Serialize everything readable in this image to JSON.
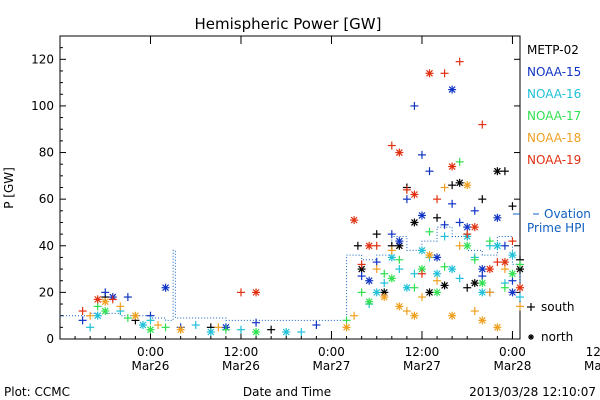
{
  "chart_data": {
    "type": "scatter",
    "title": "Hemispheric Power [GW]",
    "ylabel": "P [GW]",
    "xlabel": "Date and Time",
    "ylim": [
      0,
      130
    ],
    "y_ticks": [
      0,
      20,
      40,
      60,
      80,
      100,
      120
    ],
    "xlim_hours": [
      -12,
      49
    ],
    "x_ticks": [
      {
        "hour": 0,
        "time": "0:00",
        "date": "Mar26"
      },
      {
        "hour": 12,
        "time": "12:00",
        "date": "Mar26"
      },
      {
        "hour": 24,
        "time": "0:00",
        "date": "Mar27"
      },
      {
        "hour": 36,
        "time": "12:00",
        "date": "Mar27"
      },
      {
        "hour": 48,
        "time": "0:00",
        "date": "Mar28"
      },
      {
        "hour": 60,
        "time": "12:00",
        "date": "Mar28"
      }
    ],
    "legend_position": "right",
    "series": [
      {
        "name": "METP-02",
        "color": "#000000",
        "south": [
          [
            27.5,
            40
          ],
          [
            30,
            45
          ],
          [
            32,
            40
          ],
          [
            34,
            65
          ],
          [
            38,
            52
          ],
          [
            40,
            66
          ],
          [
            42,
            22
          ],
          [
            44,
            60
          ],
          [
            47,
            72
          ],
          [
            48,
            57
          ],
          [
            49,
            34
          ],
          [
            50,
            28
          ],
          [
            53,
            15
          ],
          [
            56,
            10
          ],
          [
            58,
            40
          ],
          [
            59,
            53
          ],
          [
            60,
            20
          ],
          [
            -6,
            18
          ],
          [
            -2,
            8
          ],
          [
            8,
            5
          ],
          [
            16,
            4
          ]
        ],
        "north": [
          [
            28,
            30
          ],
          [
            31,
            20
          ],
          [
            33,
            40
          ],
          [
            35,
            50
          ],
          [
            37,
            20
          ],
          [
            39,
            23
          ],
          [
            41,
            67
          ],
          [
            43,
            24
          ],
          [
            46,
            72
          ],
          [
            49,
            30
          ],
          [
            52,
            10
          ],
          [
            55,
            8
          ],
          [
            58,
            15
          ],
          [
            60,
            20
          ]
        ]
      },
      {
        "name": "NOAA-15",
        "color": "#1034c4",
        "south": [
          [
            -9,
            8
          ],
          [
            -6,
            20
          ],
          [
            -3,
            18
          ],
          [
            0,
            10
          ],
          [
            4,
            5
          ],
          [
            14,
            7
          ],
          [
            22,
            6
          ],
          [
            28,
            27
          ],
          [
            30,
            33
          ],
          [
            32,
            45
          ],
          [
            34,
            60
          ],
          [
            35,
            100
          ],
          [
            36,
            79
          ],
          [
            37,
            72
          ],
          [
            39,
            49
          ],
          [
            40,
            58
          ],
          [
            41,
            50
          ],
          [
            43,
            55
          ],
          [
            44,
            27
          ],
          [
            45,
            20
          ],
          [
            47,
            40
          ],
          [
            48,
            25
          ],
          [
            50,
            72
          ],
          [
            51,
            50
          ],
          [
            53,
            30
          ],
          [
            55,
            15
          ],
          [
            57,
            15
          ]
        ],
        "north": [
          [
            -5,
            18
          ],
          [
            2,
            22
          ],
          [
            10,
            5
          ],
          [
            29,
            25
          ],
          [
            33,
            42
          ],
          [
            36,
            53
          ],
          [
            38,
            35
          ],
          [
            40,
            107
          ],
          [
            42,
            48
          ],
          [
            44,
            30
          ],
          [
            46,
            52
          ],
          [
            48,
            20
          ],
          [
            52,
            18
          ],
          [
            56,
            8
          ]
        ]
      },
      {
        "name": "NOAA-16",
        "color": "#20c0d8",
        "south": [
          [
            -8,
            5
          ],
          [
            -4,
            12
          ],
          [
            0,
            8
          ],
          [
            6,
            6
          ],
          [
            12,
            4
          ],
          [
            20,
            3
          ],
          [
            29,
            15
          ],
          [
            31,
            24
          ],
          [
            33,
            30
          ],
          [
            35,
            28
          ],
          [
            37,
            35
          ],
          [
            39,
            44
          ],
          [
            41,
            26
          ],
          [
            43,
            35
          ],
          [
            45,
            40
          ],
          [
            47,
            24
          ],
          [
            49,
            18
          ],
          [
            51,
            44
          ],
          [
            53,
            28
          ],
          [
            55,
            18
          ],
          [
            57,
            36
          ],
          [
            59,
            25
          ]
        ],
        "north": [
          [
            -7,
            10
          ],
          [
            -1,
            6
          ],
          [
            8,
            3
          ],
          [
            18,
            3
          ],
          [
            30,
            20
          ],
          [
            32,
            35
          ],
          [
            34,
            22
          ],
          [
            36,
            38
          ],
          [
            38,
            28
          ],
          [
            40,
            30
          ],
          [
            42,
            44
          ],
          [
            44,
            20
          ],
          [
            46,
            40
          ],
          [
            48,
            36
          ],
          [
            50,
            14
          ],
          [
            54,
            14
          ],
          [
            58,
            18
          ]
        ]
      },
      {
        "name": "NOAA-17",
        "color": "#30e050",
        "south": [
          [
            -7,
            14
          ],
          [
            -3,
            9
          ],
          [
            2,
            5
          ],
          [
            10,
            4
          ],
          [
            26,
            8
          ],
          [
            28,
            20
          ],
          [
            31,
            28
          ],
          [
            33,
            34
          ],
          [
            35,
            22
          ],
          [
            37,
            46
          ],
          [
            39,
            31
          ],
          [
            41,
            76
          ],
          [
            43,
            34
          ],
          [
            45,
            42
          ],
          [
            47,
            22
          ],
          [
            49,
            32
          ],
          [
            51,
            12
          ],
          [
            54,
            20
          ],
          [
            57,
            22
          ],
          [
            59,
            34
          ]
        ],
        "north": [
          [
            -6,
            12
          ],
          [
            0,
            4
          ],
          [
            14,
            3
          ],
          [
            29,
            16
          ],
          [
            32,
            26
          ],
          [
            36,
            30
          ],
          [
            38,
            20
          ],
          [
            42,
            40
          ],
          [
            44,
            24
          ],
          [
            48,
            28
          ],
          [
            52,
            16
          ],
          [
            56,
            10
          ]
        ]
      },
      {
        "name": "NOAA-18",
        "color": "#f0a020",
        "south": [
          [
            -8,
            10
          ],
          [
            -4,
            14
          ],
          [
            1,
            6
          ],
          [
            9,
            5
          ],
          [
            27,
            10
          ],
          [
            30,
            30
          ],
          [
            32,
            38
          ],
          [
            34,
            12
          ],
          [
            36,
            18
          ],
          [
            38,
            25
          ],
          [
            39,
            65
          ],
          [
            41,
            40
          ],
          [
            43,
            12
          ],
          [
            45,
            20
          ],
          [
            47,
            30
          ],
          [
            49,
            14
          ],
          [
            52,
            20
          ],
          [
            55,
            15
          ],
          [
            58,
            14
          ]
        ],
        "north": [
          [
            -6,
            16
          ],
          [
            -2,
            10
          ],
          [
            4,
            4
          ],
          [
            26,
            5
          ],
          [
            31,
            18
          ],
          [
            33,
            14
          ],
          [
            35,
            10
          ],
          [
            37,
            36
          ],
          [
            40,
            10
          ],
          [
            42,
            66
          ],
          [
            44,
            8
          ],
          [
            46,
            5
          ],
          [
            50,
            25
          ],
          [
            53,
            10
          ],
          [
            57,
            6
          ]
        ]
      },
      {
        "name": "NOAA-19",
        "color": "#e03010",
        "south": [
          [
            -9,
            12
          ],
          [
            -5,
            17
          ],
          [
            12,
            20
          ],
          [
            28,
            32
          ],
          [
            30,
            40
          ],
          [
            32,
            83
          ],
          [
            34,
            64
          ],
          [
            36,
            28
          ],
          [
            38,
            60
          ],
          [
            39,
            114
          ],
          [
            41,
            119
          ],
          [
            42,
            45
          ],
          [
            44,
            92
          ],
          [
            46,
            33
          ],
          [
            48,
            42
          ],
          [
            50,
            25
          ],
          [
            52,
            30
          ],
          [
            54,
            15
          ]
        ],
        "north": [
          [
            -7,
            17
          ],
          [
            14,
            20
          ],
          [
            27,
            51
          ],
          [
            29,
            40
          ],
          [
            33,
            80
          ],
          [
            35,
            62
          ],
          [
            37,
            114
          ],
          [
            40,
            74
          ],
          [
            43,
            48
          ],
          [
            45,
            30
          ],
          [
            47,
            33
          ],
          [
            49,
            22
          ],
          [
            53,
            18
          ],
          [
            56,
            10
          ]
        ]
      }
    ],
    "ovation": {
      "name": "Ovation Prime HPI",
      "color": "#1060c0"
    },
    "marker_legend": {
      "south": "south",
      "north": "north"
    },
    "footer": {
      "plot": "Plot: CCMC",
      "timestamp": "2013/03/28 12:10:07"
    }
  }
}
